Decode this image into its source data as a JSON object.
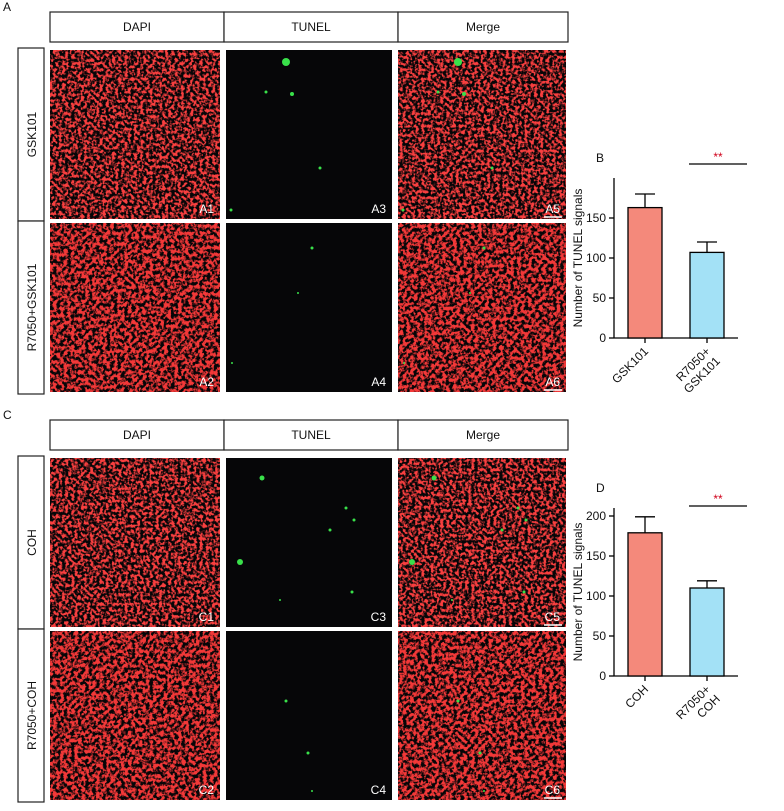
{
  "panels": [
    {
      "letter": "A",
      "columns": [
        "DAPI",
        "TUNEL",
        "Merge"
      ],
      "rows": [
        "GSK101",
        "R7050+GSK101"
      ],
      "image_labels": [
        [
          "A1",
          "A3",
          "A5"
        ],
        [
          "A2",
          "A4",
          "A6"
        ]
      ]
    },
    {
      "letter": "C",
      "columns": [
        "DAPI",
        "TUNEL",
        "Merge"
      ],
      "rows": [
        "COH",
        "R7050+COH"
      ],
      "image_labels": [
        [
          "C1",
          "C3",
          "C5"
        ],
        [
          "C2",
          "C4",
          "C6"
        ]
      ]
    }
  ],
  "chart_data": [
    {
      "type": "bar",
      "panel_label": "B",
      "y_label": "Number of TUNEL signals",
      "categories": [
        "GSK101",
        "R7050+\nGSK101"
      ],
      "values": [
        163,
        107
      ],
      "errors": [
        17,
        13
      ],
      "colors": [
        "#f4897b",
        "#a3e1f6"
      ],
      "significance": "**",
      "ylim": [
        0,
        200
      ],
      "yticks": [
        0,
        50,
        100,
        150
      ]
    },
    {
      "type": "bar",
      "panel_label": "D",
      "y_label": "Number of TUNEL signals",
      "categories": [
        "COH",
        "R7050+\nCOH"
      ],
      "values": [
        179,
        110
      ],
      "errors": [
        20,
        9
      ],
      "colors": [
        "#f4897b",
        "#a3e1f6"
      ],
      "significance": "**",
      "ylim": [
        0,
        210
      ],
      "yticks": [
        0,
        50,
        100,
        150,
        200
      ]
    }
  ]
}
